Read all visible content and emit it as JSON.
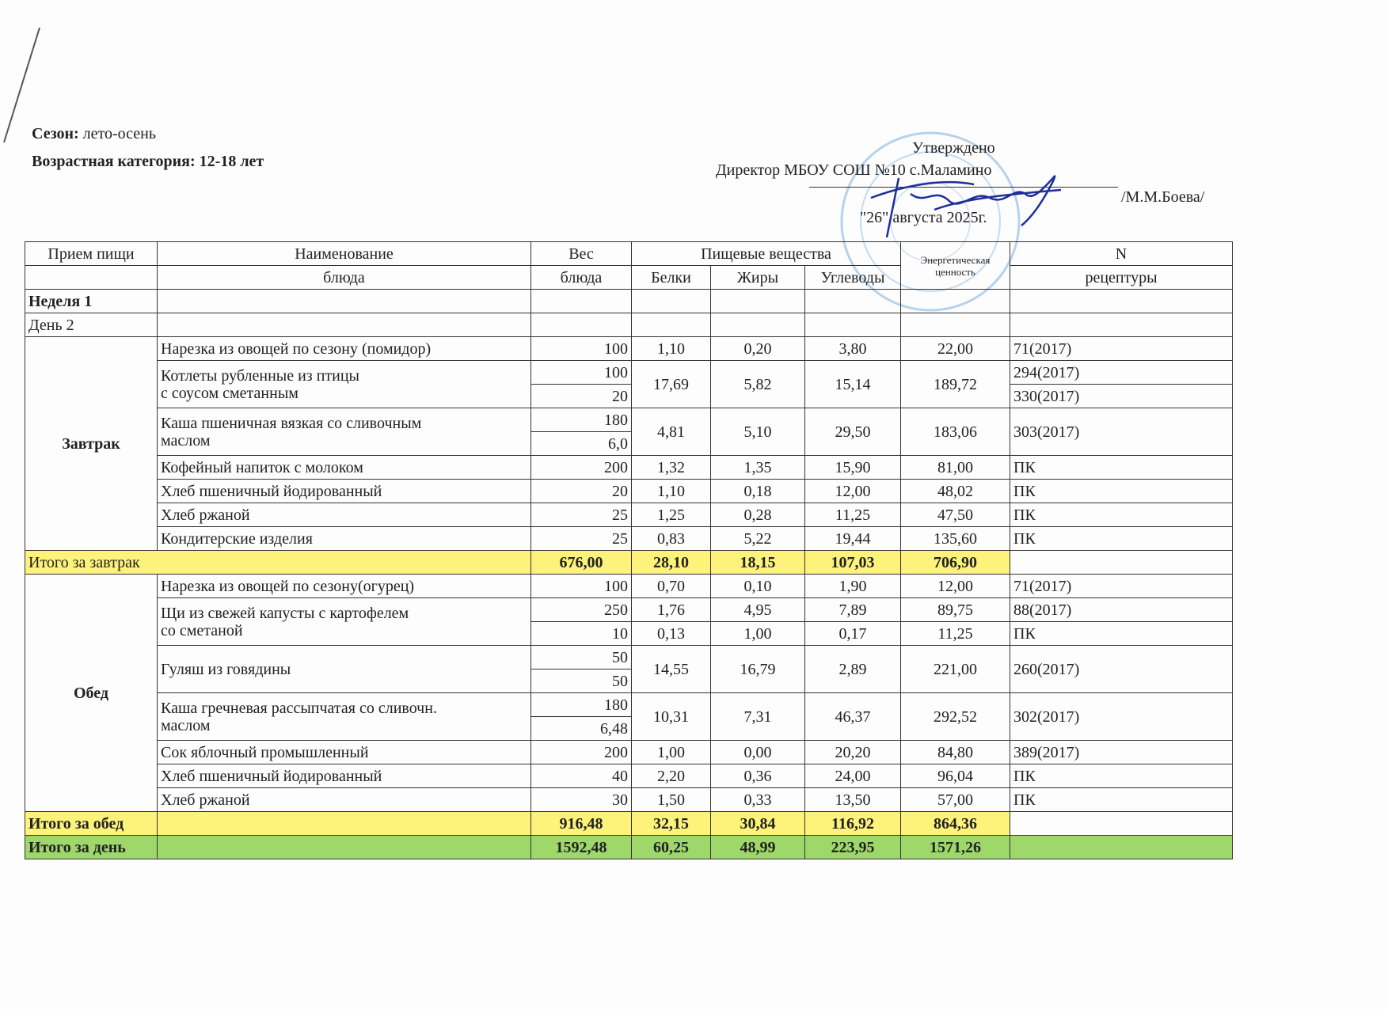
{
  "header": {
    "season_label": "Сезон:",
    "season": " лето-осень",
    "age_label": "Возрастная категория: 12-18 лет",
    "approved": "Утверждено",
    "director": "Директор МБОУ СОШ №10 с.Маламино",
    "signer": "/М.М.Боева/",
    "date": "\"26\" августа 2025г."
  },
  "table": {
    "head": {
      "meal": "Прием пищи",
      "name1": "Наименование",
      "name2": "блюда",
      "weight1": "Вес",
      "weight2": "блюда",
      "nutrients": "Пищевые вещества",
      "protein": "Белки",
      "fat": "Жиры",
      "carbs": "Углеводы",
      "energy": "Энергетическая ценность",
      "recipe1": "N",
      "recipe2": "рецептуры"
    },
    "week": "Неделя 1",
    "day": "День 2",
    "breakfast": {
      "label": "Завтрак",
      "rows": [
        {
          "name": "Нарезка из овощей по сезону (помидор)",
          "w": "100",
          "p": "1,10",
          "f": "0,20",
          "c": "3,80",
          "e": "22,00",
          "r": "71(2017)"
        },
        {
          "name": "Котлеты рубленные из птицы",
          "name2": " с соусом сметанным",
          "w": "100",
          "w2": "20",
          "p": "17,69",
          "f": "5,82",
          "c": "15,14",
          "e": "189,72",
          "r": "294(2017)",
          "r2": "330(2017)"
        },
        {
          "name": "Каша пшеничная вязкая со сливочным",
          "name2": "маслом",
          "w": "180",
          "w2": "6,0",
          "p": "4,81",
          "f": "5,10",
          "c": "29,50",
          "e": "183,06",
          "r": "303(2017)"
        },
        {
          "name": "Кофейный напиток с молоком",
          "w": "200",
          "p": "1,32",
          "f": "1,35",
          "c": "15,90",
          "e": "81,00",
          "r": "ПК"
        },
        {
          "name": "Хлеб пшеничный йодированный",
          "w": "20",
          "p": "1,10",
          "f": "0,18",
          "c": "12,00",
          "e": "48,02",
          "r": "ПК"
        },
        {
          "name": "Хлеб ржаной",
          "w": "25",
          "p": "1,25",
          "f": "0,28",
          "c": "11,25",
          "e": "47,50",
          "r": "ПК"
        },
        {
          "name": "Кондитерские изделия",
          "w": "25",
          "p": "0,83",
          "f": "5,22",
          "c": "19,44",
          "e": "135,60",
          "r": "ПК"
        }
      ],
      "total": {
        "label": "Итого за завтрак",
        "w": "676,00",
        "p": "28,10",
        "f": "18,15",
        "c": "107,03",
        "e": "706,90"
      }
    },
    "lunch": {
      "label": "Обед",
      "rows": [
        {
          "name": "Нарезка из овощей по сезону(огурец)",
          "w": "100",
          "p": "0,70",
          "f": "0,10",
          "c": "1,90",
          "e": "12,00",
          "r": "71(2017)"
        },
        {
          "name": "Щи из свежей капусты с картофелем",
          "name2": "со сметаной",
          "w": "250",
          "p": "1,76",
          "f": "4,95",
          "c": "7,89",
          "e": "89,75",
          "r": "88(2017)",
          "w2": "10",
          "p2": "0,13",
          "f2": "1,00",
          "c2": "0,17",
          "e2": "11,25",
          "r2": "ПК"
        },
        {
          "name": "Гуляш из говядины",
          "w": "50",
          "w2": "50",
          "p": "14,55",
          "f": "16,79",
          "c": "2,89",
          "e": "221,00",
          "r": "260(2017)"
        },
        {
          "name": "Каша гречневая рассыпчатая со сливочн.",
          "name2": "маслом",
          "w": "180",
          "w2": "6,48",
          "p": "10,31",
          "f": "7,31",
          "c": "46,37",
          "e": "292,52",
          "r": "302(2017)"
        },
        {
          "name": "Сок яблочный промышленный",
          "w": "200",
          "p": "1,00",
          "f": "0,00",
          "c": "20,20",
          "e": "84,80",
          "r": "389(2017)"
        },
        {
          "name": "Хлеб пшеничный йодированный",
          "w": "40",
          "p": "2,20",
          "f": "0,36",
          "c": "24,00",
          "e": "96,04",
          "r": "ПК"
        },
        {
          "name": "Хлеб ржаной",
          "w": "30",
          "p": "1,50",
          "f": "0,33",
          "c": "13,50",
          "e": "57,00",
          "r": "ПК"
        }
      ],
      "total": {
        "label": "Итого за обед",
        "w": "916,48",
        "p": "32,15",
        "f": "30,84",
        "c": "116,92",
        "e": "864,36"
      }
    },
    "day_total": {
      "label": "Итого за день",
      "w": "1592,48",
      "p": "60,25",
      "f": "48,99",
      "c": "223,95",
      "e": "1571,26"
    }
  },
  "colors": {
    "subtotal": "#fdf37a",
    "day_total": "#9fd86a",
    "stamp": "#6fa8dc",
    "signature": "#1c2f9a"
  }
}
